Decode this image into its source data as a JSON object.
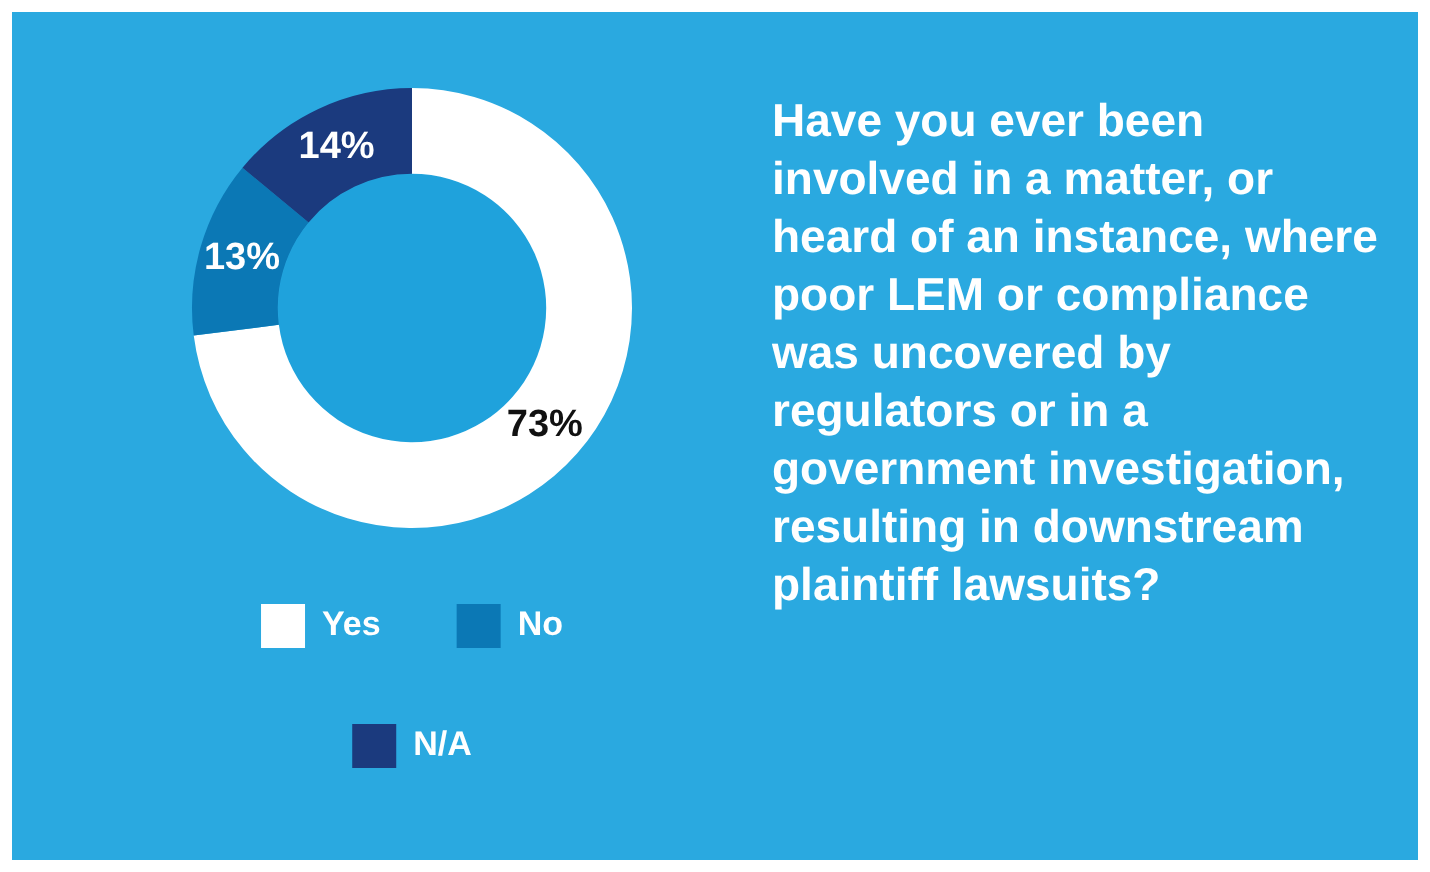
{
  "chart_data": {
    "type": "donut",
    "title": "Have you ever been involved in a matter, or heard of an instance, where poor LEM or compliance was uncovered by regulators or in a government investigation, resulting in downstream plaintiff lawsuits?",
    "categories": [
      "Yes",
      "No",
      "N/A"
    ],
    "values": [
      73,
      13,
      14
    ],
    "colors": [
      "#ffffff",
      "#0b78b5",
      "#1b3a7e"
    ],
    "value_labels": [
      "73%",
      "13%",
      "14%"
    ],
    "legend": "bottom"
  }
}
